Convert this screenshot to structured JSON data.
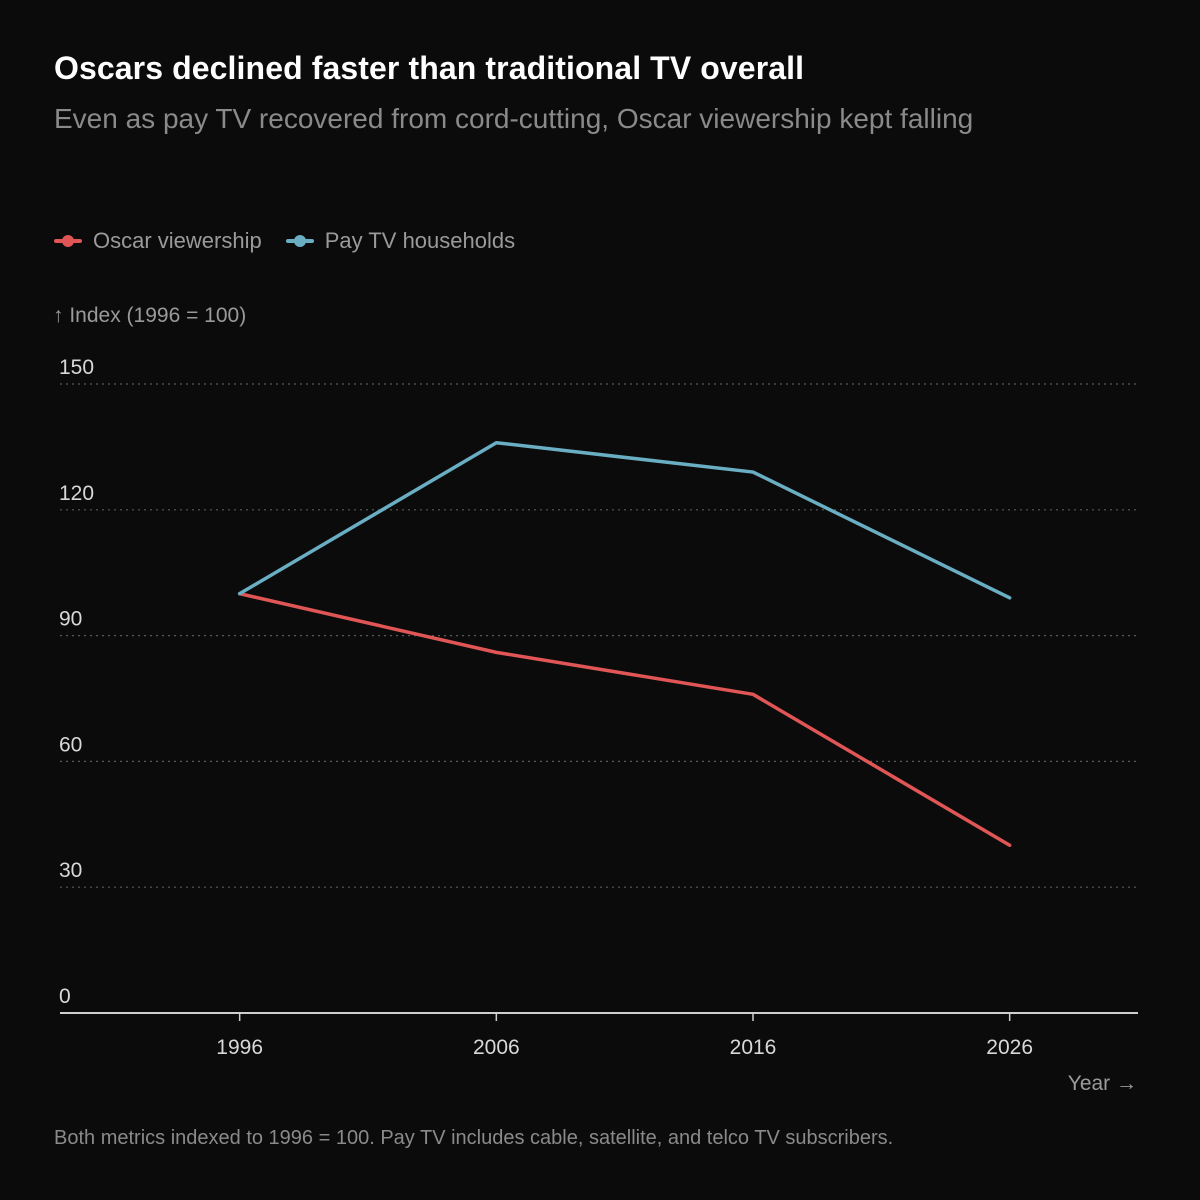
{
  "title": "Oscars declined faster than traditional TV overall",
  "subtitle": "Even as pay TV recovered from cord-cutting, Oscar viewership kept falling",
  "footnote": "Both metrics indexed to 1996 = 100. Pay TV includes cable, satellite, and telco TV subscribers.",
  "colors": {
    "background": "#0b0b0b",
    "oscar": "#e05555",
    "paytv": "#6aaec4",
    "grid": "#5a5a5a",
    "axis": "#cfcfcf"
  },
  "chart_data": {
    "type": "line",
    "title": "Oscars declined faster than traditional TV overall",
    "ylabel": "↑ Index (1996 = 100)",
    "xlabel": "Year →",
    "x": [
      1996,
      2006,
      2016,
      2026
    ],
    "xlim": [
      1989,
      2031
    ],
    "ylim": [
      0,
      150
    ],
    "yticks": [
      0,
      30,
      60,
      90,
      120,
      150
    ],
    "xticks": [
      1996,
      2006,
      2016,
      2026
    ],
    "grid": "horizontal-dotted",
    "legend_position": "top-left",
    "series": [
      {
        "name": "Oscar viewership",
        "color": "#e05555",
        "values": [
          100,
          86,
          76,
          40
        ]
      },
      {
        "name": "Pay TV households",
        "color": "#6aaec4",
        "values": [
          100,
          136,
          129,
          99
        ]
      }
    ]
  }
}
